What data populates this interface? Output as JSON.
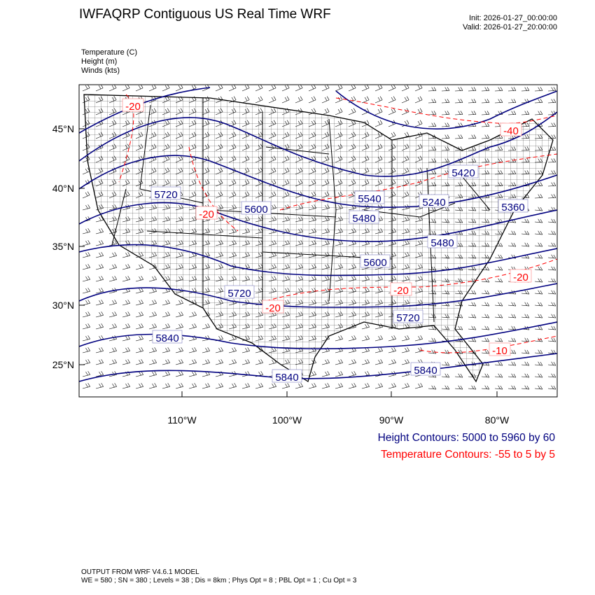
{
  "header": {
    "title": "IWFAQRP Contiguous US Real Time WRF",
    "init": "Init: 2026-01-27_00:00:00",
    "valid": "Valid: 2026-01-27_20:00:00"
  },
  "fields": [
    "Temperature   (C)",
    "Height   (m)",
    "Winds   (kts)"
  ],
  "map": {
    "lat_ticks": [
      "45°N",
      "40°N",
      "35°N",
      "30°N",
      "25°N"
    ],
    "lon_ticks": [
      "110°W",
      "100°W",
      "90°W",
      "80°W"
    ],
    "height_labels": [
      "5720",
      "5600",
      "5540",
      "5420",
      "5240",
      "5360",
      "5480",
      "5480",
      "5600",
      "5720",
      "5720",
      "5840",
      "5840",
      "5840"
    ],
    "temperature_labels": [
      "-20",
      "-20",
      "-20",
      "-20",
      "-20",
      "-40",
      "-10"
    ],
    "colors": {
      "height": "#00007f",
      "temperature": "#ff0000",
      "map_lines": "#000000"
    }
  },
  "legend": {
    "height": "Height Contours: 5000 to 5960 by 60",
    "temperature": "Temperature Contours: -55 to 5 by 5"
  },
  "footer": {
    "line1": "OUTPUT FROM WRF V4.6.1 MODEL",
    "line2": "WE = 580 ; SN = 380 ; Levels = 38 ; Dis = 8km ; Phys Opt = 8 ; PBL Opt = 1 ; Cu Opt = 3"
  }
}
